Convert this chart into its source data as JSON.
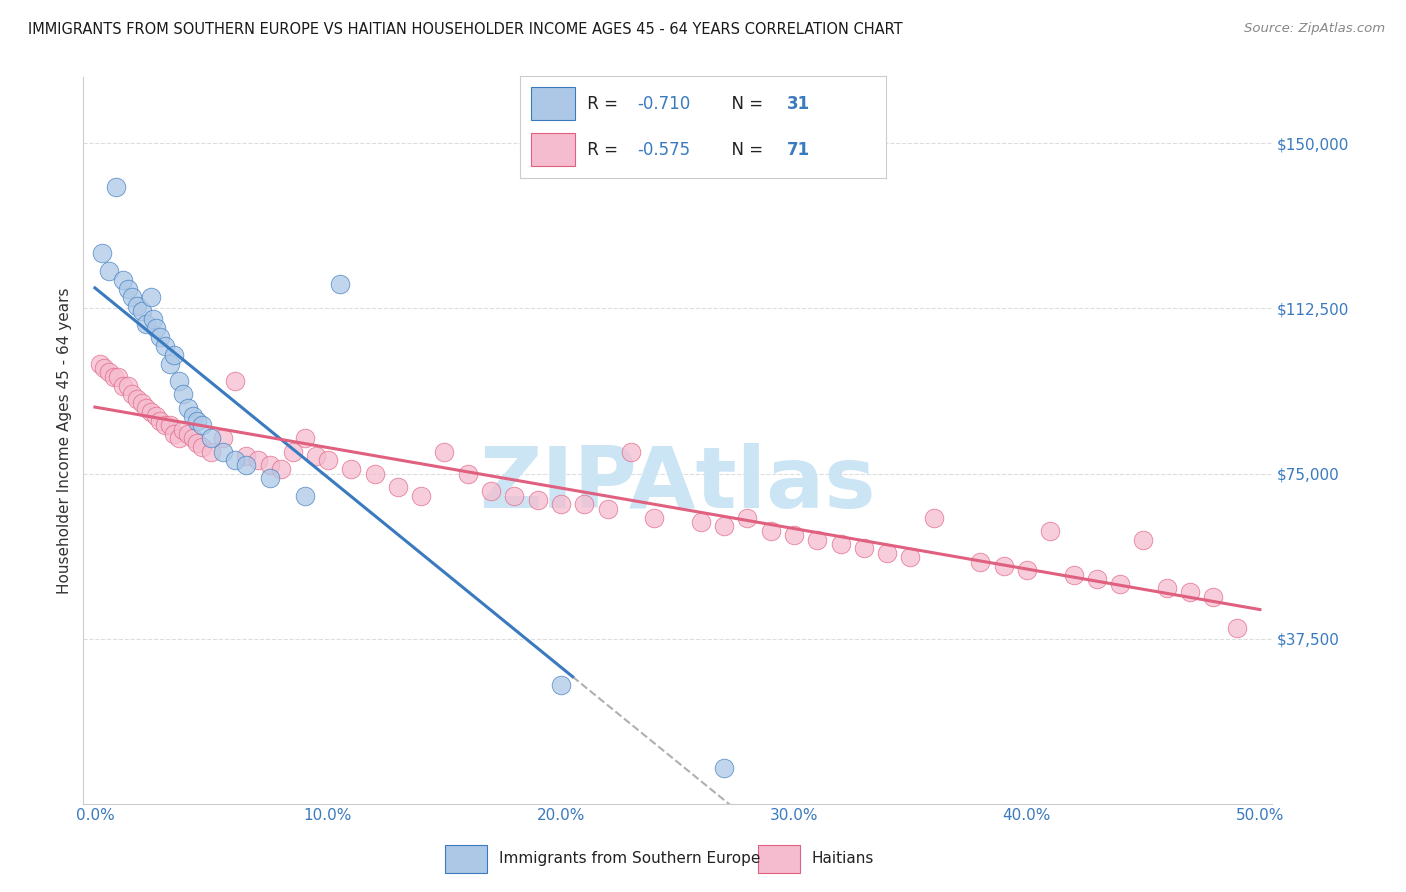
{
  "title": "IMMIGRANTS FROM SOUTHERN EUROPE VS HAITIAN HOUSEHOLDER INCOME AGES 45 - 64 YEARS CORRELATION CHART",
  "source": "Source: ZipAtlas.com",
  "ylabel": "Householder Income Ages 45 - 64 years",
  "xlim": [
    -0.005,
    0.505
  ],
  "ylim": [
    0,
    165000
  ],
  "yticks": [
    37500,
    75000,
    112500,
    150000
  ],
  "ytick_labels": [
    "$37,500",
    "$75,000",
    "$112,500",
    "$150,000"
  ],
  "xtick_labels": [
    "0.0%",
    "10.0%",
    "20.0%",
    "30.0%",
    "40.0%",
    "50.0%"
  ],
  "xticks": [
    0.0,
    0.1,
    0.2,
    0.3,
    0.4,
    0.5
  ],
  "blue_R": "-0.710",
  "blue_N": "31",
  "pink_R": "-0.575",
  "pink_N": "71",
  "blue_color": "#adc8e6",
  "blue_line_color": "#3a7abf",
  "blue_edge_color": "#3a7abf",
  "pink_color": "#f5bcd0",
  "pink_line_color": "#e06080",
  "pink_edge_color": "#e06080",
  "blue_scatter_x": [
    0.003,
    0.006,
    0.009,
    0.012,
    0.014,
    0.016,
    0.018,
    0.02,
    0.022,
    0.024,
    0.025,
    0.026,
    0.028,
    0.03,
    0.032,
    0.034,
    0.036,
    0.038,
    0.04,
    0.042,
    0.044,
    0.046,
    0.05,
    0.055,
    0.06,
    0.065,
    0.075,
    0.09,
    0.105,
    0.2,
    0.27
  ],
  "blue_scatter_y": [
    125000,
    121000,
    140000,
    119000,
    117000,
    115000,
    113000,
    112000,
    109000,
    115000,
    110000,
    108000,
    106000,
    104000,
    100000,
    102000,
    96000,
    93000,
    90000,
    88000,
    87000,
    86000,
    83000,
    80000,
    78000,
    77000,
    74000,
    70000,
    118000,
    27000,
    8000
  ],
  "pink_scatter_x": [
    0.002,
    0.004,
    0.006,
    0.008,
    0.01,
    0.012,
    0.014,
    0.016,
    0.018,
    0.02,
    0.022,
    0.024,
    0.026,
    0.028,
    0.03,
    0.032,
    0.034,
    0.036,
    0.038,
    0.04,
    0.042,
    0.044,
    0.046,
    0.05,
    0.055,
    0.06,
    0.065,
    0.07,
    0.075,
    0.08,
    0.085,
    0.09,
    0.095,
    0.1,
    0.11,
    0.12,
    0.13,
    0.14,
    0.15,
    0.16,
    0.17,
    0.18,
    0.19,
    0.2,
    0.21,
    0.22,
    0.23,
    0.24,
    0.26,
    0.27,
    0.28,
    0.29,
    0.3,
    0.31,
    0.32,
    0.33,
    0.34,
    0.35,
    0.36,
    0.38,
    0.39,
    0.4,
    0.41,
    0.42,
    0.43,
    0.44,
    0.45,
    0.46,
    0.47,
    0.48,
    0.49
  ],
  "pink_scatter_y": [
    100000,
    99000,
    98000,
    97000,
    97000,
    95000,
    95000,
    93000,
    92000,
    91000,
    90000,
    89000,
    88000,
    87000,
    86000,
    86000,
    84000,
    83000,
    85000,
    84000,
    83000,
    82000,
    81000,
    80000,
    83000,
    96000,
    79000,
    78000,
    77000,
    76000,
    80000,
    83000,
    79000,
    78000,
    76000,
    75000,
    72000,
    70000,
    80000,
    75000,
    71000,
    70000,
    69000,
    68000,
    68000,
    67000,
    80000,
    65000,
    64000,
    63000,
    65000,
    62000,
    61000,
    60000,
    59000,
    58000,
    57000,
    56000,
    65000,
    55000,
    54000,
    53000,
    62000,
    52000,
    51000,
    50000,
    60000,
    49000,
    48000,
    47000,
    40000
  ],
  "watermark": "ZIPAtlas",
  "watermark_color": "#cce5f5",
  "grid_color": "#dddddd",
  "background_color": "#ffffff",
  "tick_color": "#3a7abf",
  "label_color": "#333333",
  "legend_box_color": "#cccccc"
}
